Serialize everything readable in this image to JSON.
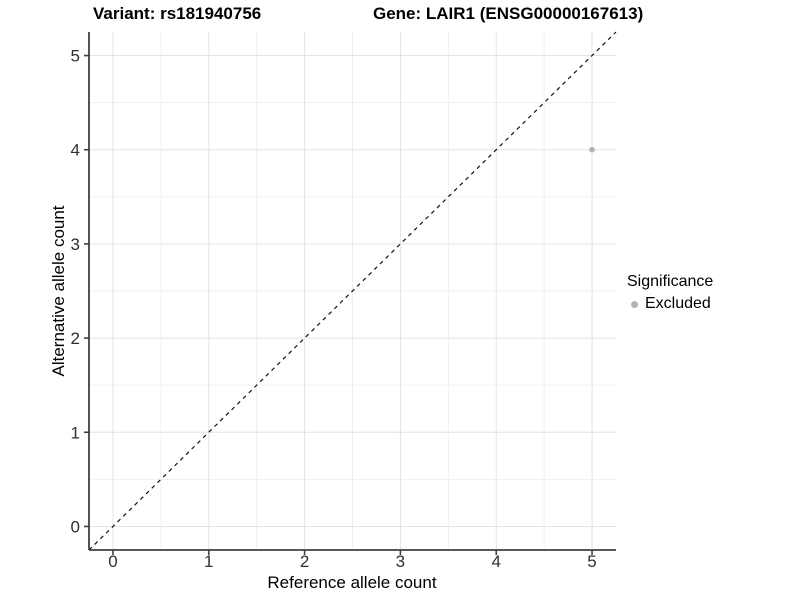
{
  "titles": {
    "variant": "Variant: rs181940756",
    "gene": "Gene: LAIR1 (ENSG00000167613)"
  },
  "chart_data": {
    "type": "scatter",
    "title": "Variant: rs181940756 — Gene: LAIR1 (ENSG00000167613)",
    "xlabel": "Reference allele count",
    "ylabel": "Alternative allele count",
    "xlim": [
      -0.25,
      5.25
    ],
    "ylim": [
      -0.25,
      5.25
    ],
    "x_ticks": [
      0,
      1,
      2,
      3,
      4,
      5
    ],
    "y_ticks": [
      0,
      1,
      2,
      3,
      4,
      5
    ],
    "grid": "major+minor",
    "minor_step": 0.5,
    "legend_position": "right",
    "series": [
      {
        "name": "Excluded",
        "color": "#b3b3b3",
        "points": [
          {
            "x": 5,
            "y": 4
          }
        ]
      }
    ],
    "reference_line": {
      "type": "identity",
      "slope": 1,
      "intercept": 0,
      "style": "dashed",
      "color": "#111111"
    }
  },
  "legend": {
    "title": "Significance",
    "items": [
      {
        "label": "Excluded",
        "color": "#b3b3b3"
      }
    ]
  },
  "colors": {
    "background": "#ffffff",
    "grid_major": "#e3e3e3",
    "grid_minor": "#f0f0f0",
    "axis_line": "#404040",
    "tick_text": "#303030",
    "point": "#b3b3b3"
  }
}
